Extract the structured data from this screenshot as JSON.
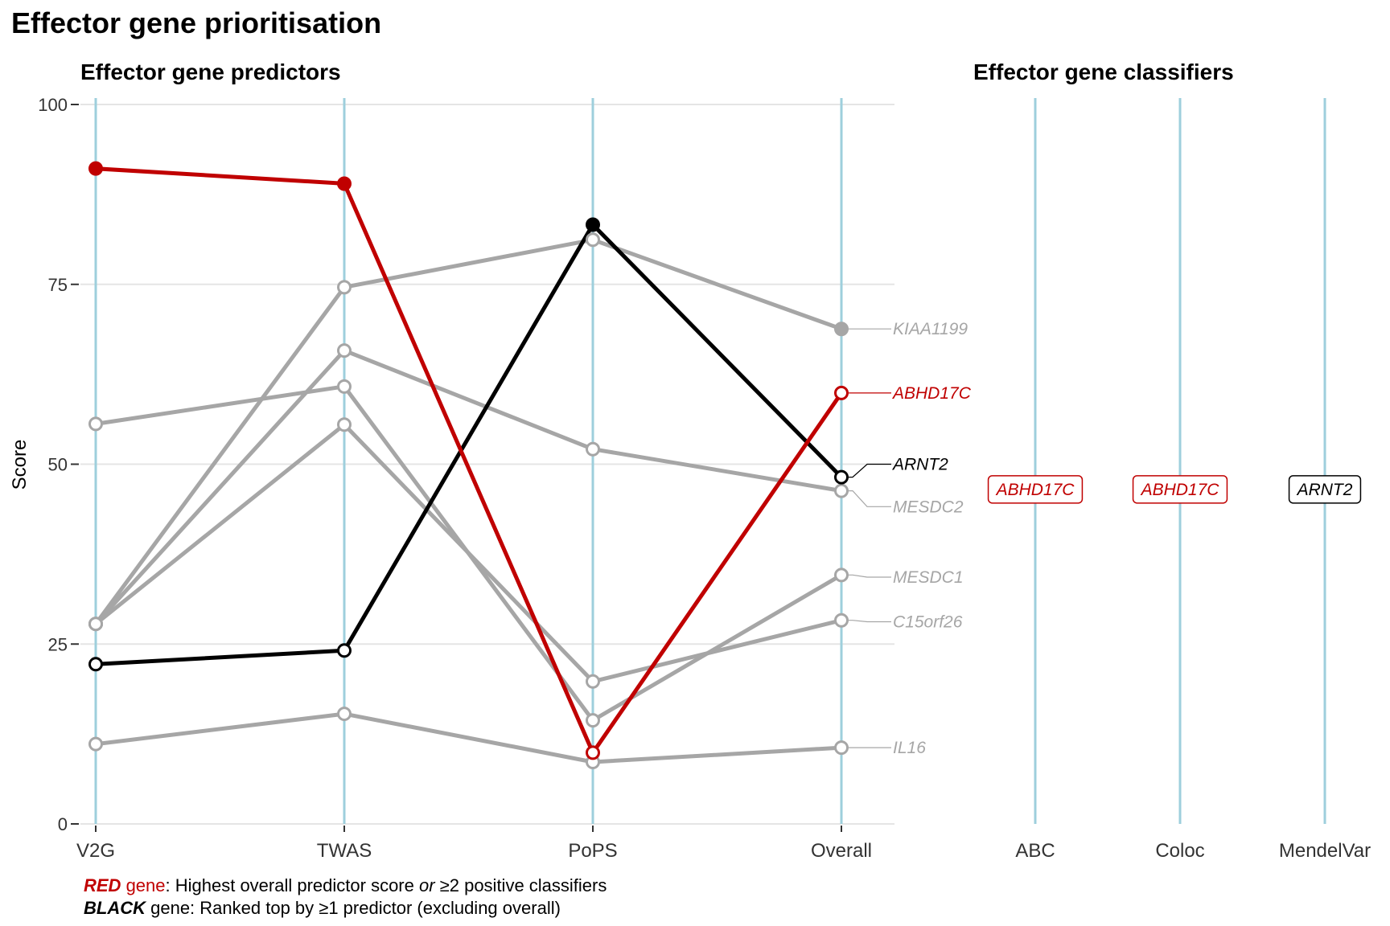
{
  "title": "Effector gene prioritisation",
  "predictors_title": "Effector gene predictors",
  "classifiers_title": "Effector gene classifiers",
  "colors": {
    "red": "#c00000",
    "black": "#000000",
    "grey": "#a6a6a6",
    "axis_line": "#9ecfdc",
    "grid": "#e5e5e5"
  },
  "chart_data": {
    "type": "line",
    "xlabel": "",
    "ylabel": "Score",
    "ylim": [
      0,
      100
    ],
    "yticks": [
      0,
      25,
      50,
      75,
      100
    ],
    "categories": [
      "V2G",
      "TWAS",
      "PoPS",
      "Overall"
    ],
    "classifier_categories": [
      "ABC",
      "Coloc",
      "MendelVar"
    ],
    "series": [
      {
        "name": "KIAA1199",
        "color": "grey",
        "values": [
          27.8,
          74.6,
          81.2,
          68.8
        ],
        "filled": [
          false,
          false,
          false,
          true
        ]
      },
      {
        "name": "ABHD17C",
        "color": "red",
        "values": [
          91.1,
          89.0,
          9.9,
          59.9
        ],
        "filled": [
          true,
          true,
          false,
          false
        ]
      },
      {
        "name": "ARNT2",
        "color": "black",
        "values": [
          22.2,
          24.1,
          83.3,
          48.2
        ],
        "filled": [
          false,
          false,
          true,
          false
        ]
      },
      {
        "name": "MESDC2",
        "color": "grey",
        "values": [
          27.8,
          65.8,
          52.1,
          46.3
        ],
        "filled": [
          false,
          false,
          false,
          false
        ]
      },
      {
        "name": "MESDC1",
        "color": "grey",
        "values": [
          55.6,
          60.8,
          14.4,
          34.6
        ],
        "filled": [
          false,
          false,
          false,
          false
        ]
      },
      {
        "name": "C15orf26",
        "color": "grey",
        "values": [
          27.8,
          55.5,
          19.8,
          28.3
        ],
        "filled": [
          false,
          false,
          false,
          false
        ]
      },
      {
        "name": "IL16",
        "color": "grey",
        "values": [
          11.1,
          15.3,
          8.6,
          10.6
        ],
        "filled": [
          false,
          false,
          false,
          false
        ]
      }
    ],
    "gene_labels": [
      {
        "text": "KIAA1199",
        "color": "grey",
        "y": 68.8
      },
      {
        "text": "ABHD17C",
        "color": "red",
        "y": 59.9
      },
      {
        "text": "ARNT2",
        "color": "black",
        "y": 50.0
      },
      {
        "text": "MESDC2",
        "color": "grey",
        "y": 44.1
      },
      {
        "text": "MESDC1",
        "color": "grey",
        "y": 34.3
      },
      {
        "text": "C15orf26",
        "color": "grey",
        "y": 28.1
      },
      {
        "text": "IL16",
        "color": "grey",
        "y": 10.6
      }
    ],
    "classifier_boxes": [
      {
        "classifier": "ABC",
        "text": "ABHD17C",
        "color": "red",
        "y": 46.5
      },
      {
        "classifier": "Coloc",
        "text": "ABHD17C",
        "color": "red",
        "y": 46.5
      },
      {
        "classifier": "MendelVar",
        "text": "ARNT2",
        "color": "black",
        "y": 46.5
      }
    ]
  },
  "notes": {
    "line1": {
      "bold_word": "RED",
      "after_bold": " gene",
      "text": ": Highest overall predictor score ",
      "or_word": "or",
      "text2": " ≥2 positive classifiers"
    },
    "line2": {
      "bold_word": "BLACK",
      "text": " gene: Ranked top by ≥1 predictor (excluding overall)"
    }
  }
}
